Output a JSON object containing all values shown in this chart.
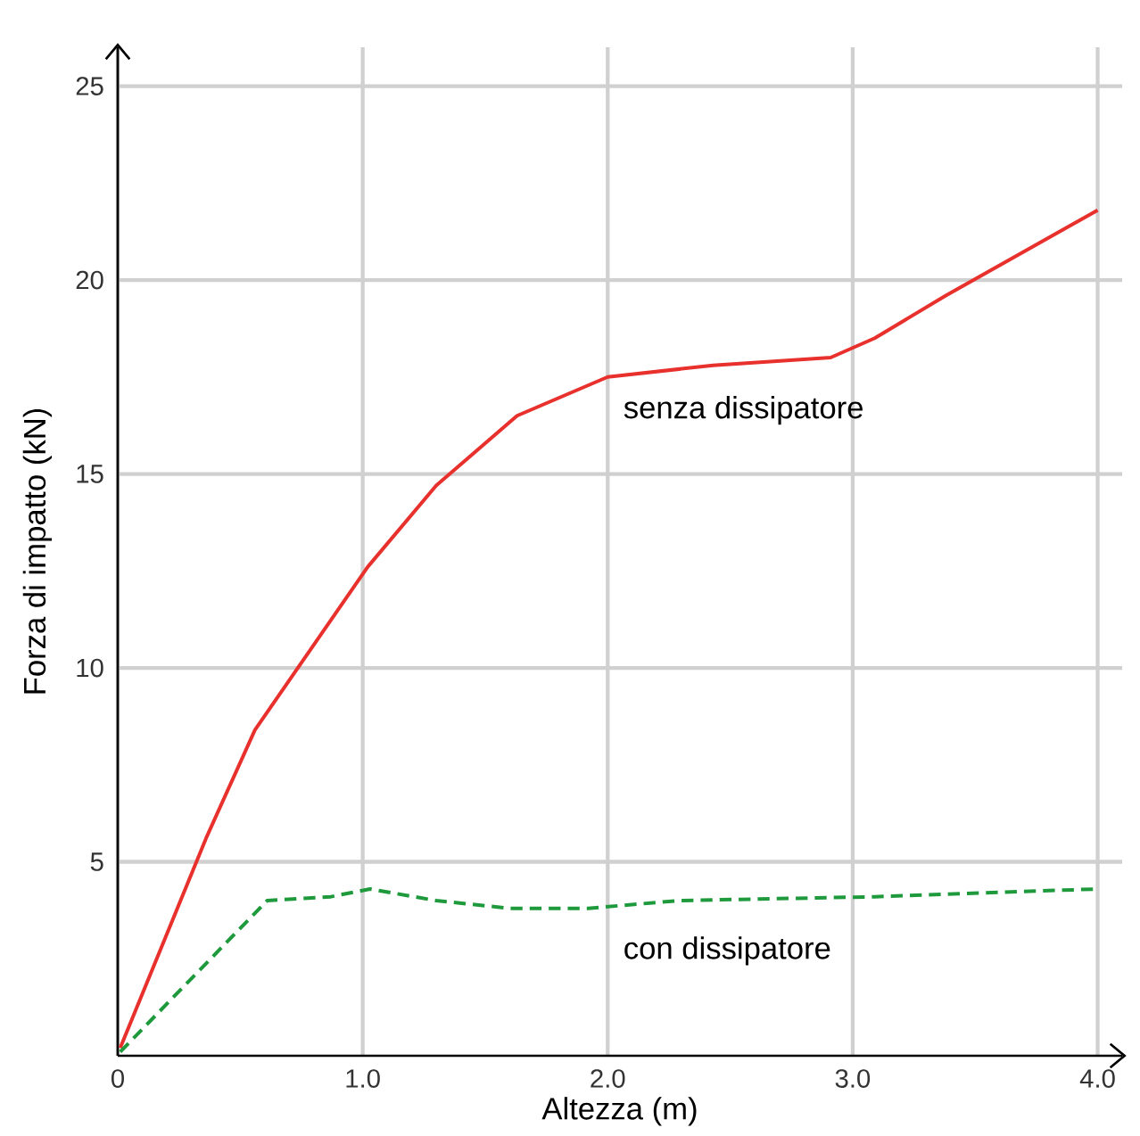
{
  "chart_data": {
    "type": "line",
    "xlabel": "Altezza (m)",
    "ylabel": "Forza di impatto (kN)",
    "xlim": [
      0,
      4.1
    ],
    "ylim": [
      0,
      26
    ],
    "xticks": [
      0,
      {
        "value": 1,
        "label": "1.0"
      },
      {
        "value": 2,
        "label": "2.0"
      },
      {
        "value": 3,
        "label": "3.0"
      },
      {
        "value": 4,
        "label": "4.0"
      }
    ],
    "yticks": [
      5,
      10,
      15,
      20,
      25
    ],
    "grid": true,
    "marker": "none",
    "series": [
      {
        "name": "senza dissipatore",
        "color": "#e8302c",
        "line_style": "solid",
        "x": [
          0.01,
          0.36,
          0.56,
          1.02,
          1.3,
          1.63,
          2.0,
          2.43,
          2.91,
          3.09,
          3.38,
          4.0
        ],
        "values": [
          0.2,
          5.6,
          8.4,
          12.6,
          14.7,
          16.5,
          17.5,
          17.8,
          18.0,
          18.5,
          19.6,
          21.8
        ]
      },
      {
        "name": "con dissipatore",
        "color": "#1e9a3c",
        "line_style": "dashed",
        "x": [
          0.01,
          0.61,
          0.87,
          1.03,
          1.3,
          1.6,
          1.92,
          2.29,
          3.09,
          4.0
        ],
        "values": [
          0.1,
          4.0,
          4.1,
          4.3,
          4.0,
          3.8,
          3.8,
          4.0,
          4.1,
          4.3
        ]
      }
    ]
  }
}
